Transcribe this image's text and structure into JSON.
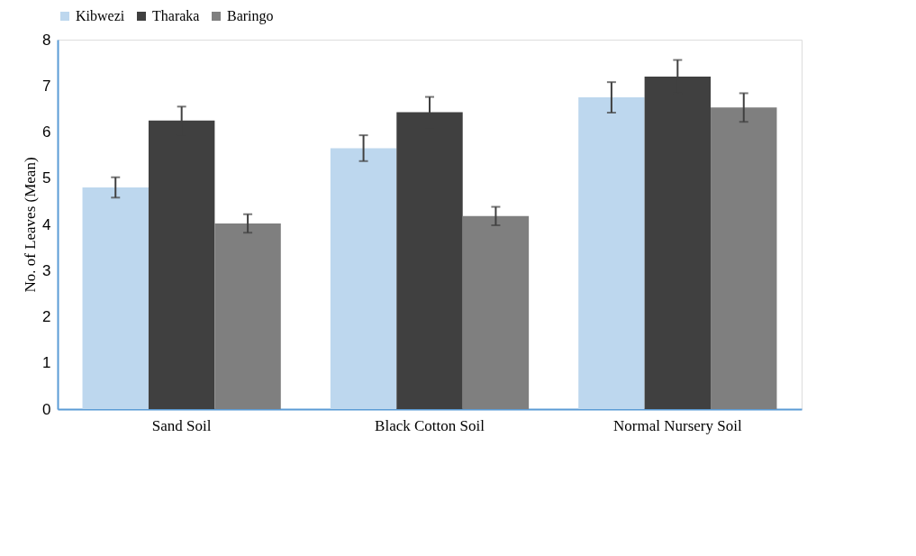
{
  "chart_data": {
    "type": "bar",
    "ylabel": "No. of Leaves (Mean)",
    "categories": [
      "Sand Soil",
      "Black Cotton Soil",
      "Normal Nursery Soil"
    ],
    "series": [
      {
        "name": "Kibwezi",
        "color": "#bdd7ee",
        "values": [
          4.8,
          5.65,
          6.75
        ],
        "errors": [
          0.22,
          0.28,
          0.33
        ]
      },
      {
        "name": "Tharaka",
        "color": "#404040",
        "values": [
          6.25,
          6.43,
          7.2
        ],
        "errors": [
          0.3,
          0.33,
          0.36
        ]
      },
      {
        "name": "Baringo",
        "color": "#7f7f7f",
        "values": [
          4.02,
          4.18,
          6.53
        ],
        "errors": [
          0.2,
          0.2,
          0.31
        ]
      }
    ],
    "ylim": [
      0,
      8
    ],
    "yticks": [
      0,
      1,
      2,
      3,
      4,
      5,
      6,
      7,
      8
    ],
    "grid": false,
    "legend": "top"
  }
}
